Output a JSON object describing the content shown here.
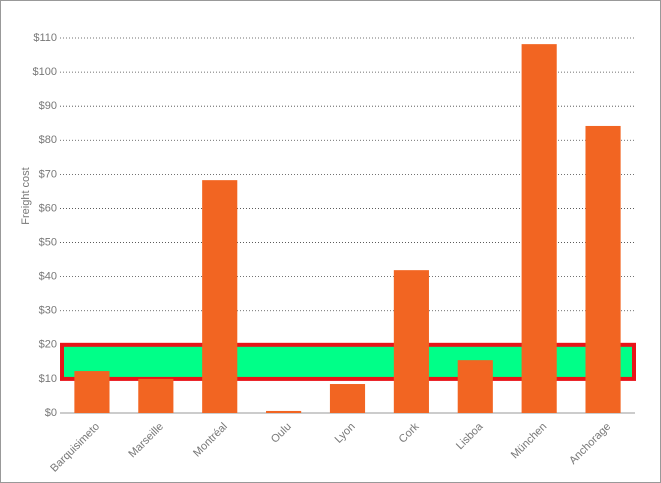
{
  "chart_data": {
    "type": "bar",
    "y_label": "Freight cost",
    "categories": [
      "Barquisimeto",
      "Marseille",
      "Montréal",
      "Oulu",
      "Lyon",
      "Cork",
      "Lisboa",
      "München",
      "Anchorage"
    ],
    "values": [
      12.3,
      10,
      68.3,
      0.6,
      8.5,
      41.9,
      15.5,
      108.2,
      84.2
    ],
    "color": "#f26522",
    "ylim": [
      0,
      110
    ],
    "yticks": [
      {
        "value": 0,
        "label": "$0"
      },
      {
        "value": 10,
        "label": "$10"
      },
      {
        "value": 20,
        "label": "$20"
      },
      {
        "value": 30,
        "label": "$30"
      },
      {
        "value": 40,
        "label": "$40"
      },
      {
        "value": 50,
        "label": "$50"
      },
      {
        "value": 60,
        "label": "$60"
      },
      {
        "value": 70,
        "label": "$70"
      },
      {
        "value": 80,
        "label": "$80"
      },
      {
        "value": 90,
        "label": "$90"
      },
      {
        "value": 100,
        "label": "$100"
      },
      {
        "value": 110,
        "label": "$110"
      }
    ],
    "grid": true,
    "highlight_band": [
      10,
      20
    ],
    "highlight_color": "#00ff88",
    "highlight_border": "#e8141a"
  }
}
